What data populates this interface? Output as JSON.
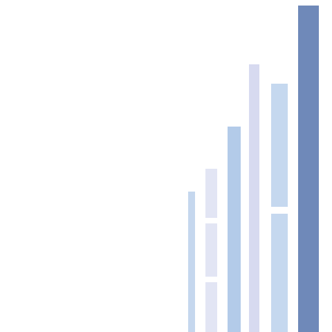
{
  "graphic": {
    "background": "#ffffff",
    "bars": [
      {
        "id": "bar-1",
        "color": "#c5d7ee",
        "segments": 1,
        "relative_height": 0.43
      },
      {
        "id": "bar-2",
        "color": "#e2e5f4",
        "segments": 3,
        "relative_height": 0.5
      },
      {
        "id": "bar-3",
        "color": "#b3cbe9",
        "segments": 1,
        "relative_height": 0.63
      },
      {
        "id": "bar-4",
        "color": "#d7daf0",
        "segments": 1,
        "relative_height": 0.82
      },
      {
        "id": "bar-5",
        "color": "#c5d8ef",
        "segments": 2,
        "relative_height": 0.76
      },
      {
        "id": "bar-6",
        "color": "#6f89b9",
        "segments": 1,
        "relative_height": 1.0
      }
    ]
  }
}
